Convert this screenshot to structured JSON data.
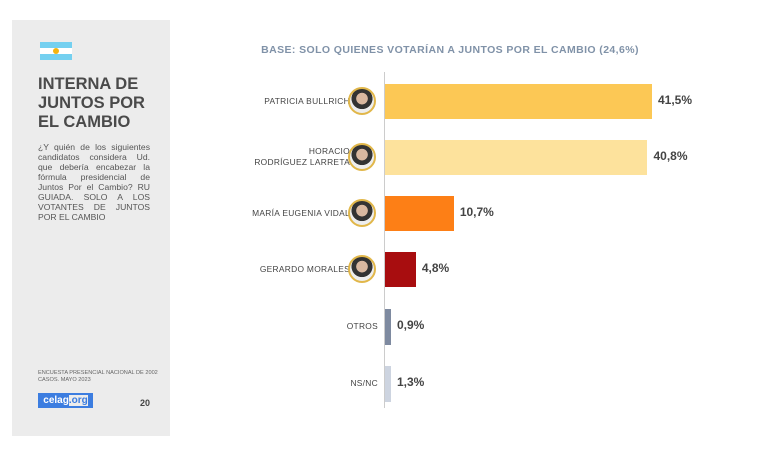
{
  "sidebar": {
    "title": "INTERNA DE JUNTOS POR EL CAMBIO",
    "question": "¿Y quién de los siguientes candidatos considera Ud. que debería encabezar la fórmula presidencial de Juntos Por el Cambio? RU GUIADA. SOLO A LOS VOTANTES DE JUNTOS POR EL CAMBIO",
    "source": "ENCUESTA PRESENCIAL NACIONAL DE 2002 CASOS. MAYO 2023",
    "logo": "celag.org",
    "page": "20",
    "flag_icon": "argentina-flag"
  },
  "chart_data": {
    "type": "bar",
    "orientation": "horizontal",
    "subtitle": "BASE: SOLO QUIENES VOTARÍAN A JUNTOS POR EL CAMBIO (24,6%)",
    "categories": [
      "PATRICIA BULLRICH",
      "HORACIO RODRÍGUEZ LARRETA",
      "MARÍA EUGENIA VIDAL",
      "GERARDO MORALES",
      "OTROS",
      "NS/NC"
    ],
    "values": [
      41.5,
      40.8,
      10.7,
      4.8,
      0.9,
      1.3
    ],
    "labels": [
      "41,5%",
      "40,8%",
      "10,7%",
      "4,8%",
      "0,9%",
      "1,3%"
    ],
    "colors": [
      "#fcc855",
      "#fde29c",
      "#fd7f16",
      "#a80d0f",
      "#7e8aa0",
      "#cdd4e0"
    ],
    "photos": [
      true,
      true,
      true,
      true,
      false,
      false
    ],
    "xlim": [
      0,
      41.5
    ],
    "grid": false
  }
}
